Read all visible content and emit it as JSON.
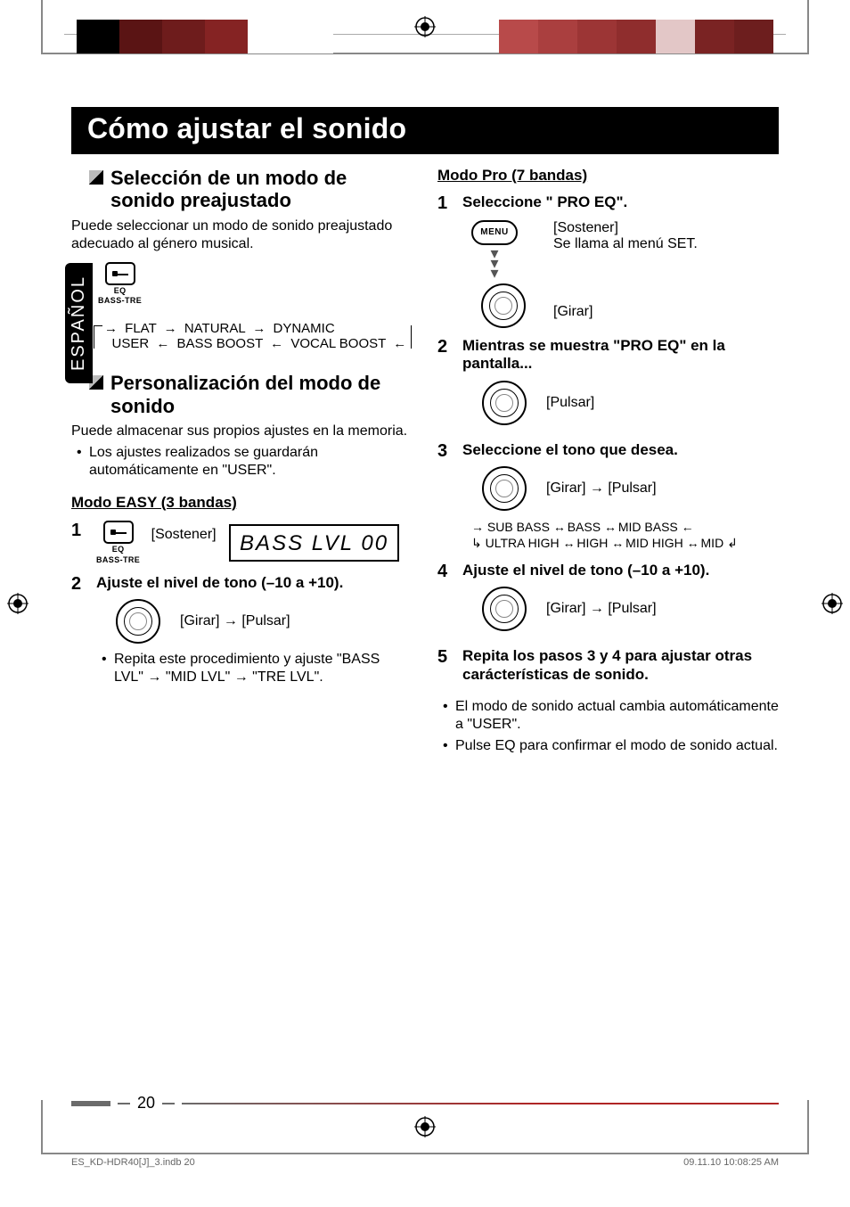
{
  "meta": {
    "language_tab": "ESPAÑOL",
    "page_number": "20",
    "footer_left": "ES_KD-HDR40[J]_3.indb   20",
    "footer_right": "09.11.10   10:08:25 AM"
  },
  "title": "Cómo ajustar el sonido",
  "left": {
    "section1": {
      "heading": "Selección de un modo de sonido preajustado",
      "body": "Puede seleccionar un modo de sonido preajustado adecuado al género musical.",
      "eq_label_top": "EQ",
      "eq_label_bottom": "BASS-TRE",
      "modes_row1": [
        "FLAT",
        "NATURAL",
        "DYNAMIC"
      ],
      "modes_row2": [
        "USER",
        "BASS BOOST",
        "VOCAL BOOST"
      ]
    },
    "section2": {
      "heading": "Personalización del modo de sonido",
      "body": "Puede almacenar sus propios ajustes en la memoria.",
      "bullet": "Los ajustes realizados se guardarán automáticamente en \"USER\"."
    },
    "easy": {
      "heading": "Modo EASY (3 bandas)",
      "step1_hold": "[Sostener]",
      "eq_label_top": "EQ",
      "eq_label_bottom": "BASS-TRE",
      "lcd": "BASS  LVL  00",
      "step2_title": "Ajuste el nivel de tono (–10 a +10).",
      "knob_label": "[Girar]  →  [Pulsar]",
      "repeat": "Repita este procedimiento y ajuste \"BASS LVL\" → \"MID LVL\" → \"TRE LVL\"."
    }
  },
  "right": {
    "heading": "Modo Pro (7 bandas)",
    "step1": {
      "title": "Seleccione \" PRO EQ\".",
      "menu": "MENU",
      "hold": "[Sostener]",
      "hold_sub": "Se llama al menú SET.",
      "knob": "[Girar]"
    },
    "step2": {
      "title": "Mientras se muestra \"PRO EQ\" en la pantalla...",
      "knob": "[Pulsar]"
    },
    "step3": {
      "title": "Seleccione el tono que desea.",
      "knob": "[Girar]  →  [Pulsar]",
      "bands_row1": [
        "SUB BASS",
        "BASS",
        "MID BASS"
      ],
      "bands_row2": [
        "ULTRA HIGH",
        "HIGH",
        "MID HIGH",
        "MID"
      ]
    },
    "step4": {
      "title": "Ajuste el nivel de tono (–10 a +10).",
      "knob": "[Girar]  →  [Pulsar]"
    },
    "step5": {
      "title": "Repita los pasos 3 y 4 para ajustar otras carácterísticas de sonido."
    },
    "notes": [
      "El modo de sonido actual cambia automáticamente a \"USER\".",
      "Pulse EQ para confirmar el modo de sonido actual."
    ]
  },
  "colors": {
    "squares_left": [
      "#000000",
      "#5a1414",
      "#6e1c1c",
      "#852323",
      "#ffffff",
      "#ffffff"
    ],
    "squares_right": [
      "#b84a4a",
      "#aa3f3f",
      "#9c3535",
      "#8f2d2d",
      "#e3c7c7",
      "#7a2323",
      "#6d1e1e"
    ]
  }
}
